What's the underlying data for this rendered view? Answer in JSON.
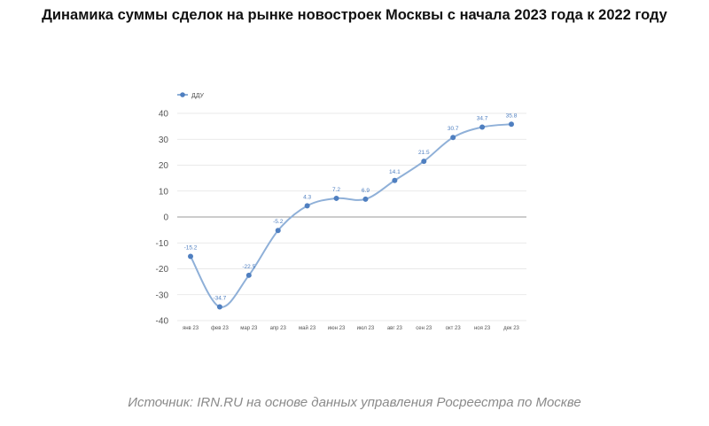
{
  "header": {
    "title": "Динамика суммы сделок на рынке новостроек Москвы с начала 2023 года к 2022 году"
  },
  "footer": {
    "source": "Источник: IRN.RU на основе данных управления Росреестра по Москве"
  },
  "colors": {
    "line": "#8fb0d8",
    "marker": "#4f7fc0",
    "grid": "#e2e2e2",
    "zero_line": "#9a9a9a",
    "text": "#555555"
  },
  "chart_data": {
    "type": "line",
    "categories": [
      "янв 23",
      "фев 23",
      "мар 23",
      "апр 23",
      "май 23",
      "июн 23",
      "июл 23",
      "авг 23",
      "сен 23",
      "окт 23",
      "ноя 23",
      "дек 23"
    ],
    "series": [
      {
        "name": "ДДУ",
        "values": [
          -15.2,
          -34.7,
          -22.5,
          -5.2,
          4.3,
          7.2,
          6.9,
          14.1,
          21.5,
          30.7,
          34.7,
          35.8
        ],
        "labels": [
          "-15.2",
          "-34.7",
          "-22.5",
          "-5.2",
          "4.3",
          "7.2",
          "6.9",
          "14.1",
          "21.5",
          "30.7",
          "34.7",
          "35.8"
        ]
      }
    ],
    "yticks": [
      40,
      30,
      20,
      10,
      0,
      -10,
      -20,
      -30,
      -40
    ],
    "ylim": [
      -40,
      40
    ],
    "grid": true,
    "legend": "top-left",
    "smooth": true
  }
}
